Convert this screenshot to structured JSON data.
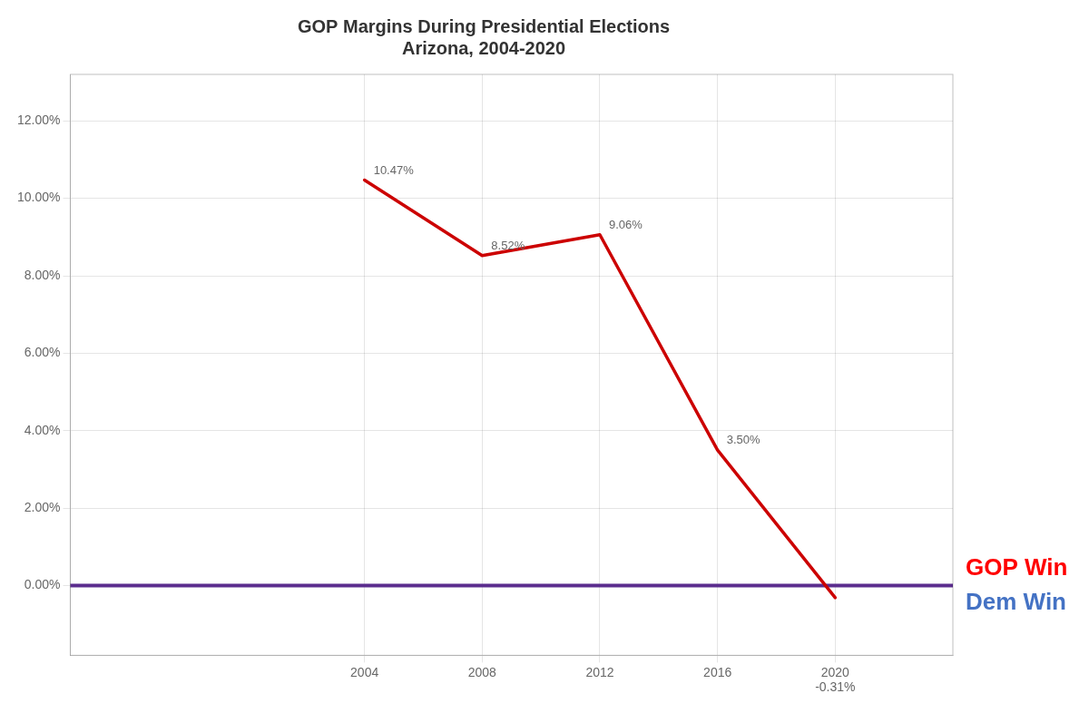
{
  "chart_data": {
    "type": "line",
    "title": "GOP Margins During Presidential Elections\nArizona, 2004-2020",
    "x": [
      2004,
      2008,
      2012,
      2016,
      2020
    ],
    "values": [
      0.1047,
      0.0852,
      0.0906,
      0.035,
      -0.0031
    ],
    "value_labels": [
      "10.47%",
      "8.52%",
      "9.06%",
      "3.50%",
      null
    ],
    "data_labels": true,
    "color": "#cc0000",
    "xlim": [
      1994,
      2024
    ],
    "xticks": [
      2004,
      2008,
      2012,
      2016,
      {
        "value": 2020,
        "label": "2020\n-0.31%"
      }
    ],
    "ylim": [
      -0.018,
      0.132
    ],
    "yticks": [
      {
        "value": 0.0,
        "label": "0.00%"
      },
      {
        "value": 0.02,
        "label": "2.00%"
      },
      {
        "value": 0.04,
        "label": "4.00%"
      },
      {
        "value": 0.06,
        "label": "6.00%"
      },
      {
        "value": 0.08,
        "label": "8.00%"
      },
      {
        "value": 0.1,
        "label": "10.00%"
      },
      {
        "value": 0.12,
        "label": "12.00%"
      }
    ],
    "grid": true,
    "annotations": [
      {
        "y": 0,
        "color": "#5b2d8e"
      },
      {
        "text": "GOP Win",
        "color": "#ff0000"
      },
      {
        "text": "Dem Win",
        "color": "#4472c4"
      }
    ]
  }
}
